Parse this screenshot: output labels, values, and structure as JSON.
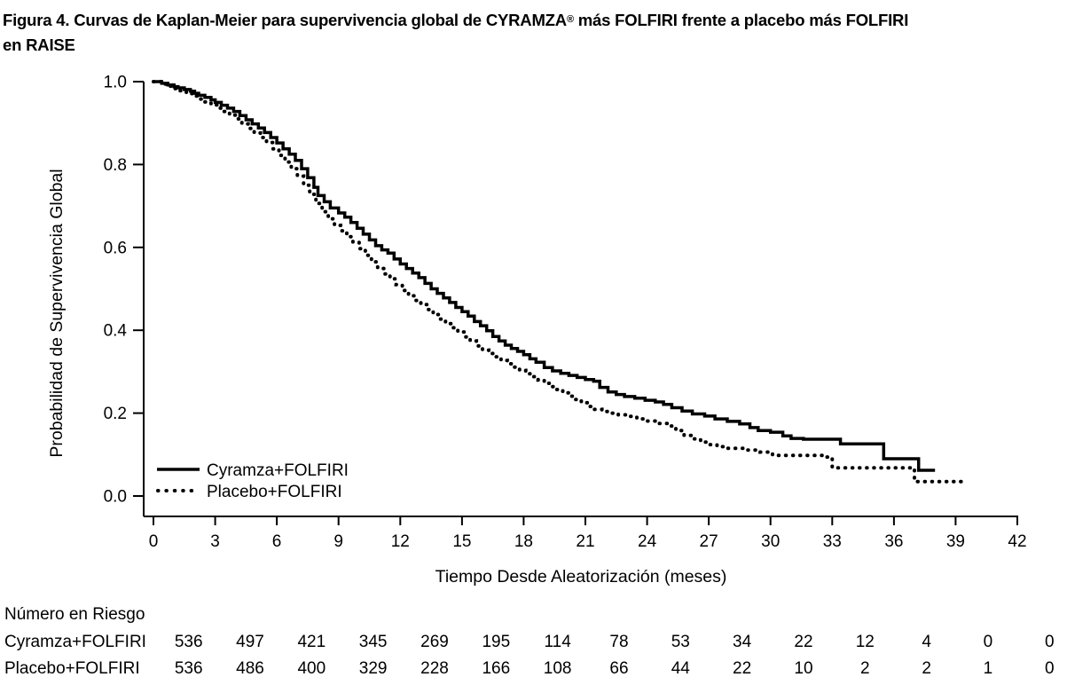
{
  "title": {
    "line1_pre": "Figura 4. Curvas de Kaplan-Meier para supervivencia global de CYRAMZA",
    "reg_mark": "®",
    "line1_post": " más FOLFIRI frente a placebo más FOLFIRI",
    "line2": "en RAISE"
  },
  "colors": {
    "curve": "#000000",
    "background": "#ffffff",
    "text": "#000000"
  },
  "chart_data": {
    "type": "line",
    "subtype": "kaplan-meier-step",
    "title": "Figura 4. Curvas de Kaplan-Meier para supervivencia global de CYRAMZA® más FOLFIRI frente a placebo más FOLFIRI en RAISE",
    "xlabel": "Tiempo Desde Aleatorización (meses)",
    "ylabel": "Probabilidad de Supervivencia Global",
    "xlim": [
      0,
      42
    ],
    "ylim": [
      0.0,
      1.0
    ],
    "x_ticks": [
      0,
      3,
      6,
      9,
      12,
      15,
      18,
      21,
      24,
      27,
      30,
      33,
      36,
      39,
      42
    ],
    "y_ticks": [
      "0.0",
      "0.2",
      "0.4",
      "0.6",
      "0.8",
      "1.0"
    ],
    "grid": false,
    "legend_position": "lower left",
    "series": [
      {
        "name": "Cyramza+FOLFIRI",
        "line_style": "solid",
        "end_time": 38.0,
        "points": [
          [
            0,
            1.0
          ],
          [
            0.4,
            0.996
          ],
          [
            0.7,
            0.992
          ],
          [
            1.0,
            0.988
          ],
          [
            1.2,
            0.985
          ],
          [
            1.5,
            0.981
          ],
          [
            1.8,
            0.977
          ],
          [
            2.0,
            0.972
          ],
          [
            2.2,
            0.967
          ],
          [
            2.5,
            0.962
          ],
          [
            2.8,
            0.956
          ],
          [
            3.0,
            0.95
          ],
          [
            3.3,
            0.943
          ],
          [
            3.6,
            0.936
          ],
          [
            3.9,
            0.928
          ],
          [
            4.2,
            0.918
          ],
          [
            4.5,
            0.908
          ],
          [
            4.8,
            0.898
          ],
          [
            5.1,
            0.888
          ],
          [
            5.4,
            0.877
          ],
          [
            5.7,
            0.865
          ],
          [
            6.0,
            0.852
          ],
          [
            6.3,
            0.838
          ],
          [
            6.6,
            0.825
          ],
          [
            6.9,
            0.81
          ],
          [
            7.2,
            0.79
          ],
          [
            7.5,
            0.768
          ],
          [
            7.8,
            0.745
          ],
          [
            8.0,
            0.725
          ],
          [
            8.3,
            0.71
          ],
          [
            8.6,
            0.695
          ],
          [
            9.0,
            0.683
          ],
          [
            9.3,
            0.673
          ],
          [
            9.6,
            0.66
          ],
          [
            9.9,
            0.646
          ],
          [
            10.2,
            0.632
          ],
          [
            10.5,
            0.618
          ],
          [
            10.8,
            0.604
          ],
          [
            11.1,
            0.594
          ],
          [
            11.4,
            0.586
          ],
          [
            11.7,
            0.572
          ],
          [
            12.0,
            0.56
          ],
          [
            12.3,
            0.549
          ],
          [
            12.6,
            0.538
          ],
          [
            12.9,
            0.527
          ],
          [
            13.2,
            0.513
          ],
          [
            13.5,
            0.5
          ],
          [
            13.8,
            0.489
          ],
          [
            14.1,
            0.478
          ],
          [
            14.4,
            0.467
          ],
          [
            14.7,
            0.455
          ],
          [
            15.0,
            0.445
          ],
          [
            15.3,
            0.434
          ],
          [
            15.6,
            0.421
          ],
          [
            15.9,
            0.411
          ],
          [
            16.2,
            0.399
          ],
          [
            16.5,
            0.385
          ],
          [
            16.8,
            0.374
          ],
          [
            17.1,
            0.364
          ],
          [
            17.4,
            0.356
          ],
          [
            17.7,
            0.349
          ],
          [
            18.0,
            0.341
          ],
          [
            18.3,
            0.331
          ],
          [
            18.6,
            0.323
          ],
          [
            19.0,
            0.31
          ],
          [
            19.4,
            0.302
          ],
          [
            19.8,
            0.296
          ],
          [
            20.2,
            0.291
          ],
          [
            20.6,
            0.286
          ],
          [
            21.0,
            0.281
          ],
          [
            21.4,
            0.277
          ],
          [
            21.7,
            0.262
          ],
          [
            22.1,
            0.251
          ],
          [
            22.5,
            0.245
          ],
          [
            22.9,
            0.24
          ],
          [
            23.4,
            0.236
          ],
          [
            23.9,
            0.231
          ],
          [
            24.4,
            0.227
          ],
          [
            24.8,
            0.221
          ],
          [
            25.2,
            0.213
          ],
          [
            25.7,
            0.205
          ],
          [
            26.2,
            0.198
          ],
          [
            26.8,
            0.193
          ],
          [
            27.3,
            0.186
          ],
          [
            27.9,
            0.18
          ],
          [
            28.5,
            0.174
          ],
          [
            29.0,
            0.165
          ],
          [
            29.4,
            0.158
          ],
          [
            30.0,
            0.154
          ],
          [
            30.6,
            0.145
          ],
          [
            31.0,
            0.139
          ],
          [
            31.6,
            0.137
          ],
          [
            33.4,
            0.126
          ],
          [
            35.5,
            0.09
          ],
          [
            37.2,
            0.062
          ]
        ]
      },
      {
        "name": "Placebo+FOLFIRI",
        "line_style": "dotted",
        "end_time": 39.3,
        "points": [
          [
            0,
            1.0
          ],
          [
            0.4,
            0.994
          ],
          [
            0.7,
            0.989
          ],
          [
            1.0,
            0.983
          ],
          [
            1.3,
            0.978
          ],
          [
            1.6,
            0.971
          ],
          [
            1.9,
            0.965
          ],
          [
            2.2,
            0.958
          ],
          [
            2.5,
            0.951
          ],
          [
            2.8,
            0.944
          ],
          [
            3.1,
            0.936
          ],
          [
            3.4,
            0.928
          ],
          [
            3.7,
            0.919
          ],
          [
            4.0,
            0.91
          ],
          [
            4.3,
            0.898
          ],
          [
            4.6,
            0.887
          ],
          [
            4.9,
            0.876
          ],
          [
            5.2,
            0.865
          ],
          [
            5.5,
            0.853
          ],
          [
            5.8,
            0.838
          ],
          [
            6.1,
            0.822
          ],
          [
            6.4,
            0.806
          ],
          [
            6.7,
            0.79
          ],
          [
            7.0,
            0.772
          ],
          [
            7.3,
            0.75
          ],
          [
            7.6,
            0.728
          ],
          [
            7.9,
            0.706
          ],
          [
            8.2,
            0.686
          ],
          [
            8.5,
            0.669
          ],
          [
            8.8,
            0.653
          ],
          [
            9.1,
            0.64
          ],
          [
            9.4,
            0.626
          ],
          [
            9.7,
            0.612
          ],
          [
            10.0,
            0.597
          ],
          [
            10.3,
            0.581
          ],
          [
            10.6,
            0.565
          ],
          [
            10.9,
            0.549
          ],
          [
            11.2,
            0.536
          ],
          [
            11.5,
            0.524
          ],
          [
            11.8,
            0.51
          ],
          [
            12.1,
            0.496
          ],
          [
            12.4,
            0.483
          ],
          [
            12.7,
            0.472
          ],
          [
            13.0,
            0.462
          ],
          [
            13.3,
            0.45
          ],
          [
            13.6,
            0.438
          ],
          [
            13.9,
            0.427
          ],
          [
            14.2,
            0.416
          ],
          [
            14.5,
            0.406
          ],
          [
            14.8,
            0.396
          ],
          [
            15.1,
            0.384
          ],
          [
            15.4,
            0.374
          ],
          [
            15.7,
            0.362
          ],
          [
            16.0,
            0.352
          ],
          [
            16.3,
            0.344
          ],
          [
            16.6,
            0.336
          ],
          [
            16.9,
            0.327
          ],
          [
            17.2,
            0.319
          ],
          [
            17.5,
            0.311
          ],
          [
            17.8,
            0.303
          ],
          [
            18.1,
            0.295
          ],
          [
            18.4,
            0.288
          ],
          [
            18.7,
            0.28
          ],
          [
            19.0,
            0.272
          ],
          [
            19.3,
            0.264
          ],
          [
            19.6,
            0.257
          ],
          [
            19.9,
            0.249
          ],
          [
            20.2,
            0.241
          ],
          [
            20.5,
            0.233
          ],
          [
            20.8,
            0.225
          ],
          [
            21.1,
            0.216
          ],
          [
            21.4,
            0.209
          ],
          [
            21.8,
            0.204
          ],
          [
            22.2,
            0.2
          ],
          [
            22.6,
            0.196
          ],
          [
            23.0,
            0.192
          ],
          [
            23.5,
            0.186
          ],
          [
            24.0,
            0.181
          ],
          [
            24.5,
            0.175
          ],
          [
            25.0,
            0.169
          ],
          [
            25.4,
            0.158
          ],
          [
            25.8,
            0.146
          ],
          [
            26.2,
            0.138
          ],
          [
            26.6,
            0.13
          ],
          [
            27.0,
            0.124
          ],
          [
            27.4,
            0.119
          ],
          [
            27.9,
            0.115
          ],
          [
            28.8,
            0.111
          ],
          [
            29.5,
            0.106
          ],
          [
            30.1,
            0.098
          ],
          [
            32.7,
            0.094
          ],
          [
            33.0,
            0.068
          ],
          [
            37.0,
            0.035
          ]
        ]
      }
    ]
  },
  "risk_table": {
    "heading": "Número en Riesgo",
    "times": [
      0,
      3,
      6,
      9,
      12,
      15,
      18,
      21,
      24,
      27,
      30,
      33,
      36,
      39,
      42
    ],
    "rows": [
      {
        "label": "Cyramza+FOLFIRI",
        "values": [
          536,
          497,
          421,
          345,
          269,
          195,
          114,
          78,
          53,
          34,
          22,
          12,
          4,
          0,
          0
        ]
      },
      {
        "label": "Placebo+FOLFIRI",
        "values": [
          536,
          486,
          400,
          329,
          228,
          166,
          108,
          66,
          44,
          22,
          10,
          2,
          2,
          1,
          0
        ]
      }
    ]
  }
}
